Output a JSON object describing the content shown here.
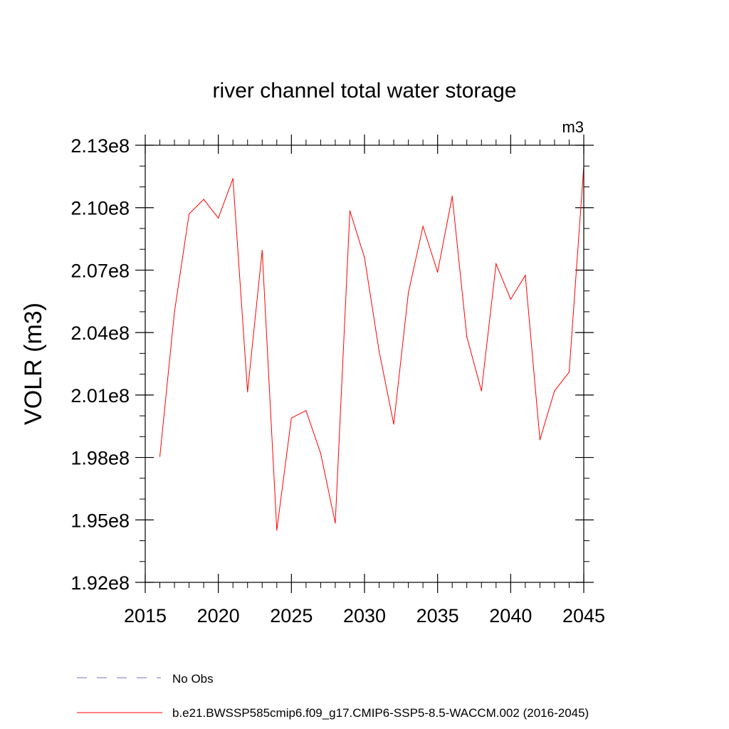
{
  "chart_data": {
    "type": "line",
    "title": "river channel total water storage",
    "units_label": "m3",
    "ylabel": "VOLR  (m3)",
    "xlabel": "",
    "xlim": [
      2015,
      2045
    ],
    "ylim": [
      192000000,
      213000000
    ],
    "x_ticks": [
      2015,
      2020,
      2025,
      2030,
      2035,
      2040,
      2045
    ],
    "x_tick_labels": [
      "2015",
      "2020",
      "2025",
      "2030",
      "2035",
      "2040",
      "2045"
    ],
    "y_ticks": [
      192000000,
      195000000,
      198000000,
      201000000,
      204000000,
      207000000,
      210000000,
      213000000
    ],
    "y_tick_labels": [
      "1.92e8",
      "1.95e8",
      "1.98e8",
      "2.01e8",
      "2.04e8",
      "2.07e8",
      "2.10e8",
      "2.13e8"
    ],
    "series": [
      {
        "name": "b.e21.BWSSP585cmip6.f09_g17.CMIP6-SSP5-8.5-WACCM.002 (2016-2045)",
        "color": "#ff0000",
        "style": "solid",
        "x": [
          2016,
          2017,
          2018,
          2019,
          2020,
          2021,
          2022,
          2023,
          2024,
          2025,
          2026,
          2027,
          2028,
          2029,
          2030,
          2031,
          2032,
          2033,
          2034,
          2035,
          2036,
          2037,
          2038,
          2039,
          2040,
          2041,
          2042,
          2043,
          2044,
          2045
        ],
        "values": [
          198050000,
          205000000,
          209700000,
          210400000,
          209500000,
          211400000,
          201150000,
          207950000,
          194500000,
          199900000,
          200250000,
          198200000,
          194850000,
          209850000,
          207600000,
          203100000,
          199600000,
          205900000,
          209100000,
          206900000,
          210550000,
          203800000,
          201200000,
          207300000,
          205600000,
          206750000,
          198850000,
          201200000,
          202100000,
          212000000
        ]
      }
    ],
    "legend": [
      {
        "label": "No Obs",
        "color": "#7b6fbf",
        "style": "dashed"
      },
      {
        "label": "b.e21.BWSSP585cmip6.f09_g17.CMIP6-SSP5-8.5-WACCM.002 (2016-2045)",
        "color": "#ff0000",
        "style": "solid"
      }
    ],
    "legend_placement": "bottom",
    "grid": false
  }
}
